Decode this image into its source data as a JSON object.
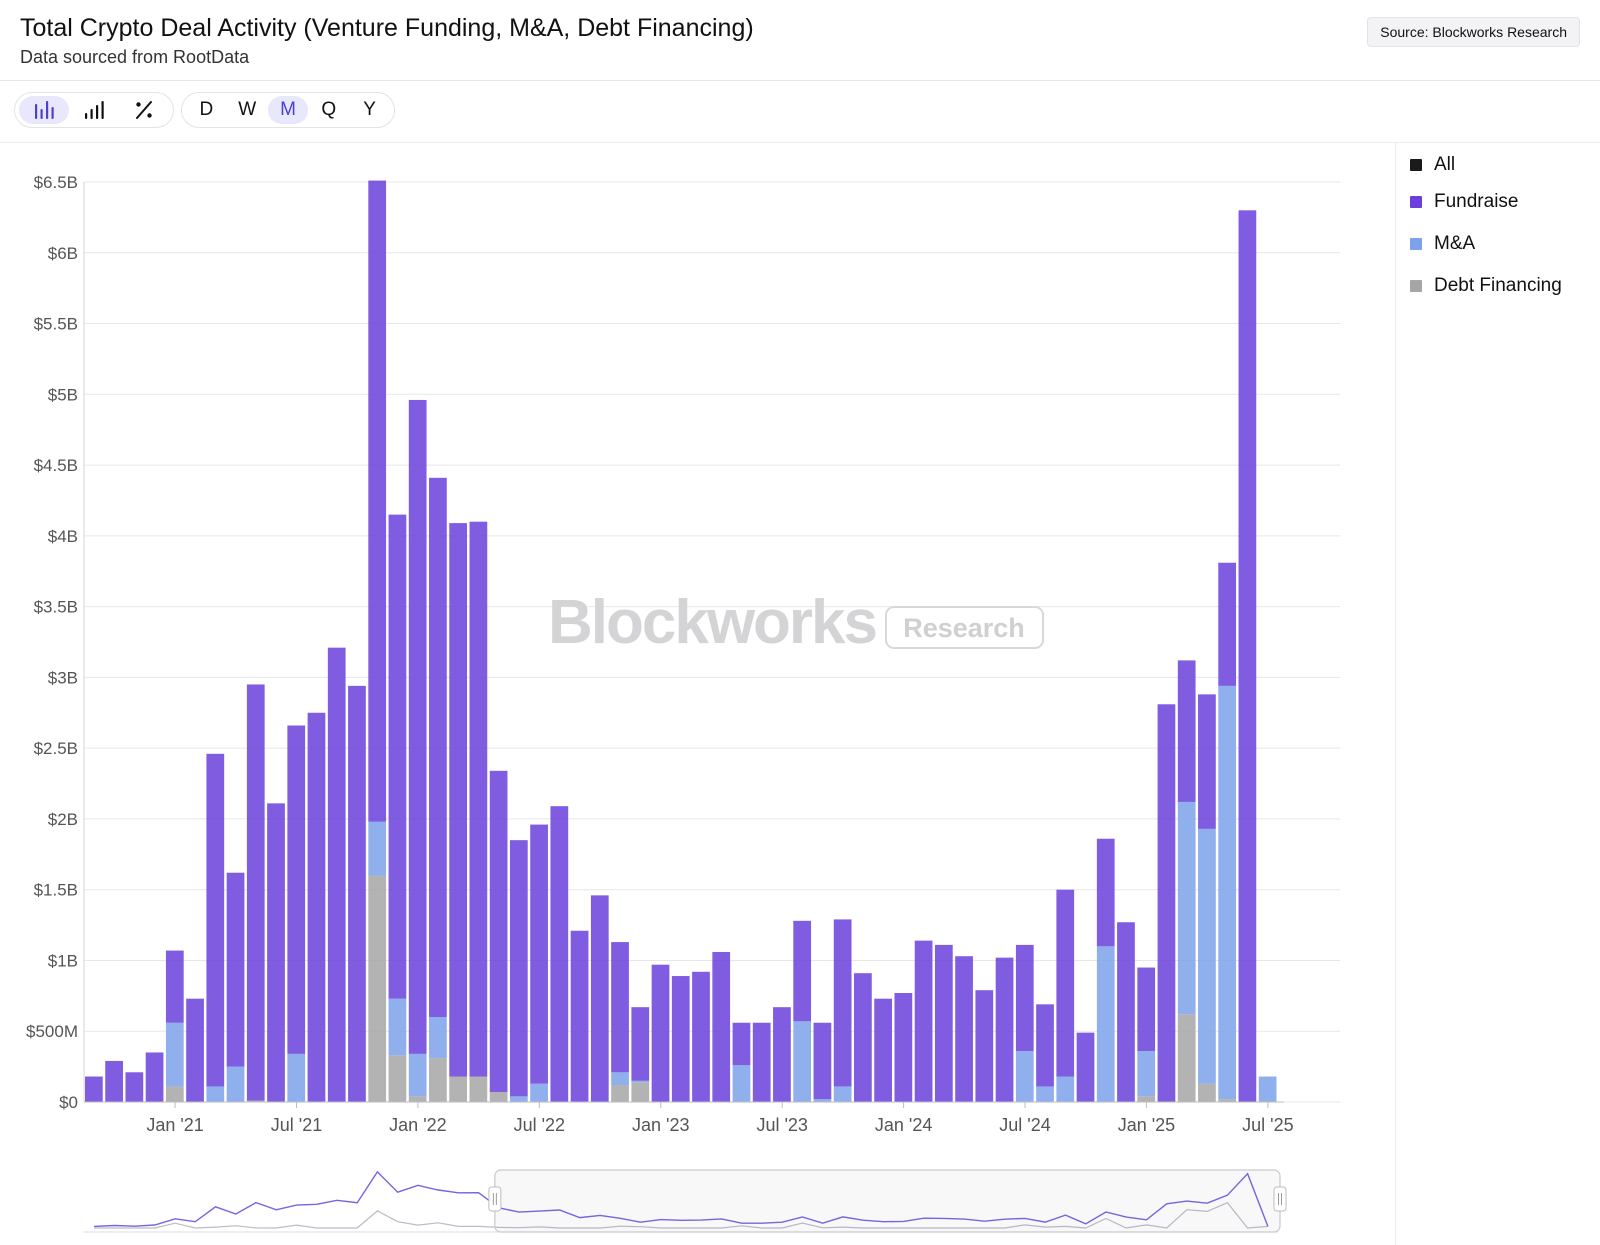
{
  "header": {
    "title": "Total Crypto Deal Activity (Venture Funding, M&A, Debt Financing)",
    "subtitle": "Data sourced from RootData",
    "source": "Source: Blockworks Research"
  },
  "toolbar": {
    "chart_types": [
      {
        "icon": "stacked-bar-chart-icon",
        "active": true
      },
      {
        "icon": "bar-chart-icon",
        "active": false
      },
      {
        "icon": "percent-icon",
        "active": false
      }
    ],
    "periods": [
      {
        "label": "D",
        "active": false
      },
      {
        "label": "W",
        "active": false
      },
      {
        "label": "M",
        "active": true
      },
      {
        "label": "Q",
        "active": false
      },
      {
        "label": "Y",
        "active": false
      }
    ]
  },
  "watermark": {
    "brand": "Blockworks",
    "tag": "Research"
  },
  "legend": [
    {
      "label": "All",
      "color": "#1a1a1a"
    },
    {
      "label": "Fundraise",
      "color": "#6a3fdc"
    },
    {
      "label": "M&A",
      "color": "#7da2ea"
    },
    {
      "label": "Debt Financing",
      "color": "#a6a6a6"
    }
  ],
  "chart_data": {
    "type": "bar",
    "stacked": true,
    "y_unit": "USD",
    "ylim": [
      0,
      6500000000
    ],
    "y_ticks": [
      {
        "value": 0,
        "label": "$0"
      },
      {
        "value": 500000000,
        "label": "$500M"
      },
      {
        "value": 1000000000,
        "label": "$1B"
      },
      {
        "value": 1500000000,
        "label": "$1.5B"
      },
      {
        "value": 2000000000,
        "label": "$2B"
      },
      {
        "value": 2500000000,
        "label": "$2.5B"
      },
      {
        "value": 3000000000,
        "label": "$3B"
      },
      {
        "value": 3500000000,
        "label": "$3.5B"
      },
      {
        "value": 4000000000,
        "label": "$4B"
      },
      {
        "value": 4500000000,
        "label": "$4.5B"
      },
      {
        "value": 5000000000,
        "label": "$5B"
      },
      {
        "value": 5500000000,
        "label": "$5.5B"
      },
      {
        "value": 6000000000,
        "label": "$6B"
      },
      {
        "value": 6500000000,
        "label": "$6.5B"
      }
    ],
    "x_ticks": [
      {
        "index": 4,
        "label": "Jan '21"
      },
      {
        "index": 10,
        "label": "Jul '21"
      },
      {
        "index": 16,
        "label": "Jan '22"
      },
      {
        "index": 22,
        "label": "Jul '22"
      },
      {
        "index": 28,
        "label": "Jan '23"
      },
      {
        "index": 34,
        "label": "Jul '23"
      },
      {
        "index": 40,
        "label": "Jan '24"
      },
      {
        "index": 46,
        "label": "Jul '24"
      },
      {
        "index": 52,
        "label": "Jan '25"
      },
      {
        "index": 58,
        "label": "Jul '25"
      }
    ],
    "categories": [
      "2020-09",
      "2020-10",
      "2020-11",
      "2020-12",
      "2021-01",
      "2021-02",
      "2021-03",
      "2021-04",
      "2021-05",
      "2021-06",
      "2021-07",
      "2021-08",
      "2021-09",
      "2021-10",
      "2021-11",
      "2021-12",
      "2022-01",
      "2022-02",
      "2022-03",
      "2022-04",
      "2022-05",
      "2022-06",
      "2022-07",
      "2022-08",
      "2022-09",
      "2022-10",
      "2022-11",
      "2022-12",
      "2023-01",
      "2023-02",
      "2023-03",
      "2023-04",
      "2023-05",
      "2023-06",
      "2023-07",
      "2023-08",
      "2023-09",
      "2023-10",
      "2023-11",
      "2023-12",
      "2024-01",
      "2024-02",
      "2024-03",
      "2024-04",
      "2024-05",
      "2024-06",
      "2024-07",
      "2024-08",
      "2024-09",
      "2024-10",
      "2024-11",
      "2024-12",
      "2025-01",
      "2025-02",
      "2025-03",
      "2025-04",
      "2025-05",
      "2025-06",
      "2025-07"
    ],
    "series": [
      {
        "name": "Debt Financing",
        "color": "#a6a6a6",
        "values": [
          0,
          0,
          0,
          0,
          110000000,
          0,
          0,
          0,
          10000000,
          0,
          0,
          0,
          0,
          0,
          1600000000,
          330000000,
          40000000,
          310000000,
          180000000,
          180000000,
          70000000,
          0,
          0,
          0,
          0,
          0,
          120000000,
          140000000,
          0,
          0,
          0,
          0,
          0,
          0,
          0,
          0,
          0,
          0,
          0,
          0,
          0,
          0,
          0,
          0,
          0,
          0,
          0,
          0,
          0,
          0,
          0,
          0,
          40000000,
          0,
          620000000,
          130000000,
          20000000,
          0,
          0
        ]
      },
      {
        "name": "M&A",
        "color": "#7da2ea",
        "values": [
          0,
          0,
          0,
          0,
          450000000,
          0,
          110000000,
          250000000,
          0,
          0,
          340000000,
          0,
          0,
          0,
          380000000,
          400000000,
          300000000,
          290000000,
          0,
          0,
          0,
          40000000,
          130000000,
          0,
          0,
          0,
          90000000,
          10000000,
          0,
          0,
          0,
          0,
          260000000,
          0,
          0,
          570000000,
          20000000,
          110000000,
          0,
          0,
          0,
          0,
          0,
          0,
          0,
          0,
          360000000,
          110000000,
          180000000,
          0,
          1100000000,
          0,
          320000000,
          0,
          1500000000,
          1800000000,
          2920000000,
          0,
          180000000
        ]
      },
      {
        "name": "Fundraise",
        "color": "#6a3fdc",
        "values": [
          180000000,
          290000000,
          210000000,
          350000000,
          510000000,
          730000000,
          2350000000,
          1370000000,
          2940000000,
          2110000000,
          2320000000,
          2750000000,
          3210000000,
          2940000000,
          4530000000,
          3420000000,
          4620000000,
          3810000000,
          3910000000,
          3920000000,
          2270000000,
          1810000000,
          1830000000,
          2090000000,
          1210000000,
          1460000000,
          920000000,
          520000000,
          970000000,
          890000000,
          920000000,
          1060000000,
          300000000,
          560000000,
          670000000,
          710000000,
          540000000,
          1180000000,
          910000000,
          730000000,
          770000000,
          1140000000,
          1110000000,
          1030000000,
          790000000,
          1020000000,
          750000000,
          580000000,
          1320000000,
          490000000,
          760000000,
          1270000000,
          590000000,
          2810000000,
          1000000000,
          950000000,
          870000000,
          6300000000,
          0
        ]
      }
    ]
  },
  "navigator": {
    "all_line": [
      180000000,
      290000000,
      210000000,
      350000000,
      1070000000,
      730000000,
      2460000000,
      1620000000,
      2950000000,
      2110000000,
      2660000000,
      2750000000,
      3210000000,
      2940000000,
      6510000000,
      4150000000,
      4960000000,
      4410000000,
      4090000000,
      4100000000,
      2340000000,
      1850000000,
      1960000000,
      2090000000,
      1210000000,
      1460000000,
      1130000000,
      670000000,
      970000000,
      890000000,
      920000000,
      1060000000,
      560000000,
      560000000,
      670000000,
      1280000000,
      560000000,
      1290000000,
      910000000,
      730000000,
      770000000,
      1140000000,
      1110000000,
      1030000000,
      790000000,
      1020000000,
      1110000000,
      690000000,
      1500000000,
      490000000,
      1860000000,
      1270000000,
      950000000,
      2810000000,
      3120000000,
      2880000000,
      3810000000,
      6300000000,
      180000000
    ],
    "secondary_line": [
      0,
      0,
      0,
      0,
      560000000,
      0,
      110000000,
      250000000,
      10000000,
      0,
      340000000,
      0,
      0,
      0,
      1980000000,
      730000000,
      340000000,
      600000000,
      180000000,
      180000000,
      70000000,
      40000000,
      130000000,
      0,
      0,
      0,
      210000000,
      150000000,
      0,
      0,
      0,
      0,
      260000000,
      0,
      0,
      570000000,
      20000000,
      110000000,
      0,
      0,
      0,
      0,
      0,
      0,
      0,
      0,
      360000000,
      110000000,
      180000000,
      0,
      1100000000,
      0,
      360000000,
      0,
      2120000000,
      1930000000,
      2940000000,
      0,
      180000000
    ]
  }
}
